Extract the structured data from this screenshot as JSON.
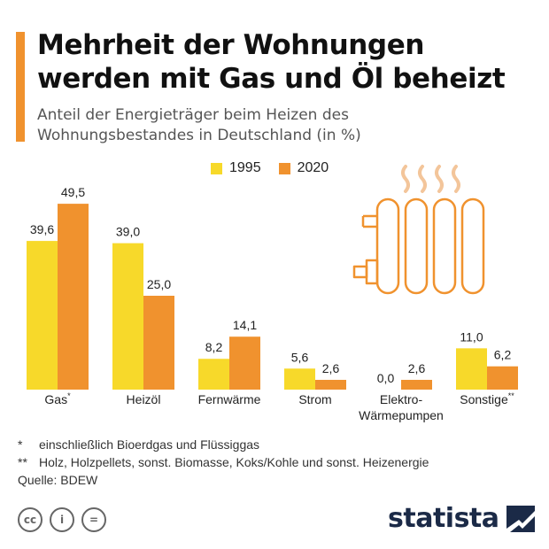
{
  "header": {
    "title_line1": "Mehrheit der Wohnungen",
    "title_line2": "werden mit Gas und Öl beheizt",
    "subtitle_line1": "Anteil der Energieträger beim Heizen des",
    "subtitle_line2": "Wohnungsbestandes in Deutschland (in %)"
  },
  "colors": {
    "accent": "#f0922e",
    "series_1995": "#f7d92a",
    "series_2020": "#f0922e",
    "icon_line": "#f0922e",
    "steam": "#f3c59a",
    "logo": "#1b2a47"
  },
  "chart_data": {
    "type": "bar",
    "categories": [
      "Gas*",
      "Heizöl",
      "Fernwärme",
      "Strom",
      "Elektro-\nWärmepumpen",
      "Sonstige**"
    ],
    "series": [
      {
        "name": "1995",
        "values": [
          39.6,
          39.0,
          8.2,
          5.6,
          0.0,
          11.0
        ],
        "labels": [
          "39,6",
          "39,0",
          "8,2",
          "5,6",
          "0,0",
          "11,0"
        ]
      },
      {
        "name": "2020",
        "values": [
          49.5,
          25.0,
          14.1,
          2.6,
          2.6,
          6.2
        ],
        "labels": [
          "49,5",
          "25,0",
          "14,1",
          "2,6",
          "2,6",
          "6,2"
        ]
      }
    ],
    "ylim": [
      0,
      50
    ],
    "legend_position": "top",
    "grid": false
  },
  "category_parts": [
    {
      "main": "Gas",
      "sup": "*"
    },
    {
      "main": "Heizöl",
      "sup": ""
    },
    {
      "main": "Fernwärme",
      "sup": ""
    },
    {
      "main": "Strom",
      "sup": ""
    },
    {
      "main": "Elektro-",
      "main2": "Wärmepumpen",
      "sup": ""
    },
    {
      "main": "Sonstige",
      "sup": "**"
    }
  ],
  "legend": [
    {
      "label": "1995"
    },
    {
      "label": "2020"
    }
  ],
  "notes": {
    "note1_mark": "*",
    "note1_text": "einschließlich Bioerdgas und Flüssiggas",
    "note2_mark": "**",
    "note2_text": "Holz, Holzpellets, sonst. Biomasse, Koks/Kohle und sonst. Heizenergie",
    "source": "Quelle: BDEW"
  },
  "footer": {
    "icons": [
      "cc-icon",
      "by-icon",
      "nd-icon"
    ],
    "icon_labels": [
      "cc",
      "i",
      "="
    ],
    "logo": "statista"
  }
}
